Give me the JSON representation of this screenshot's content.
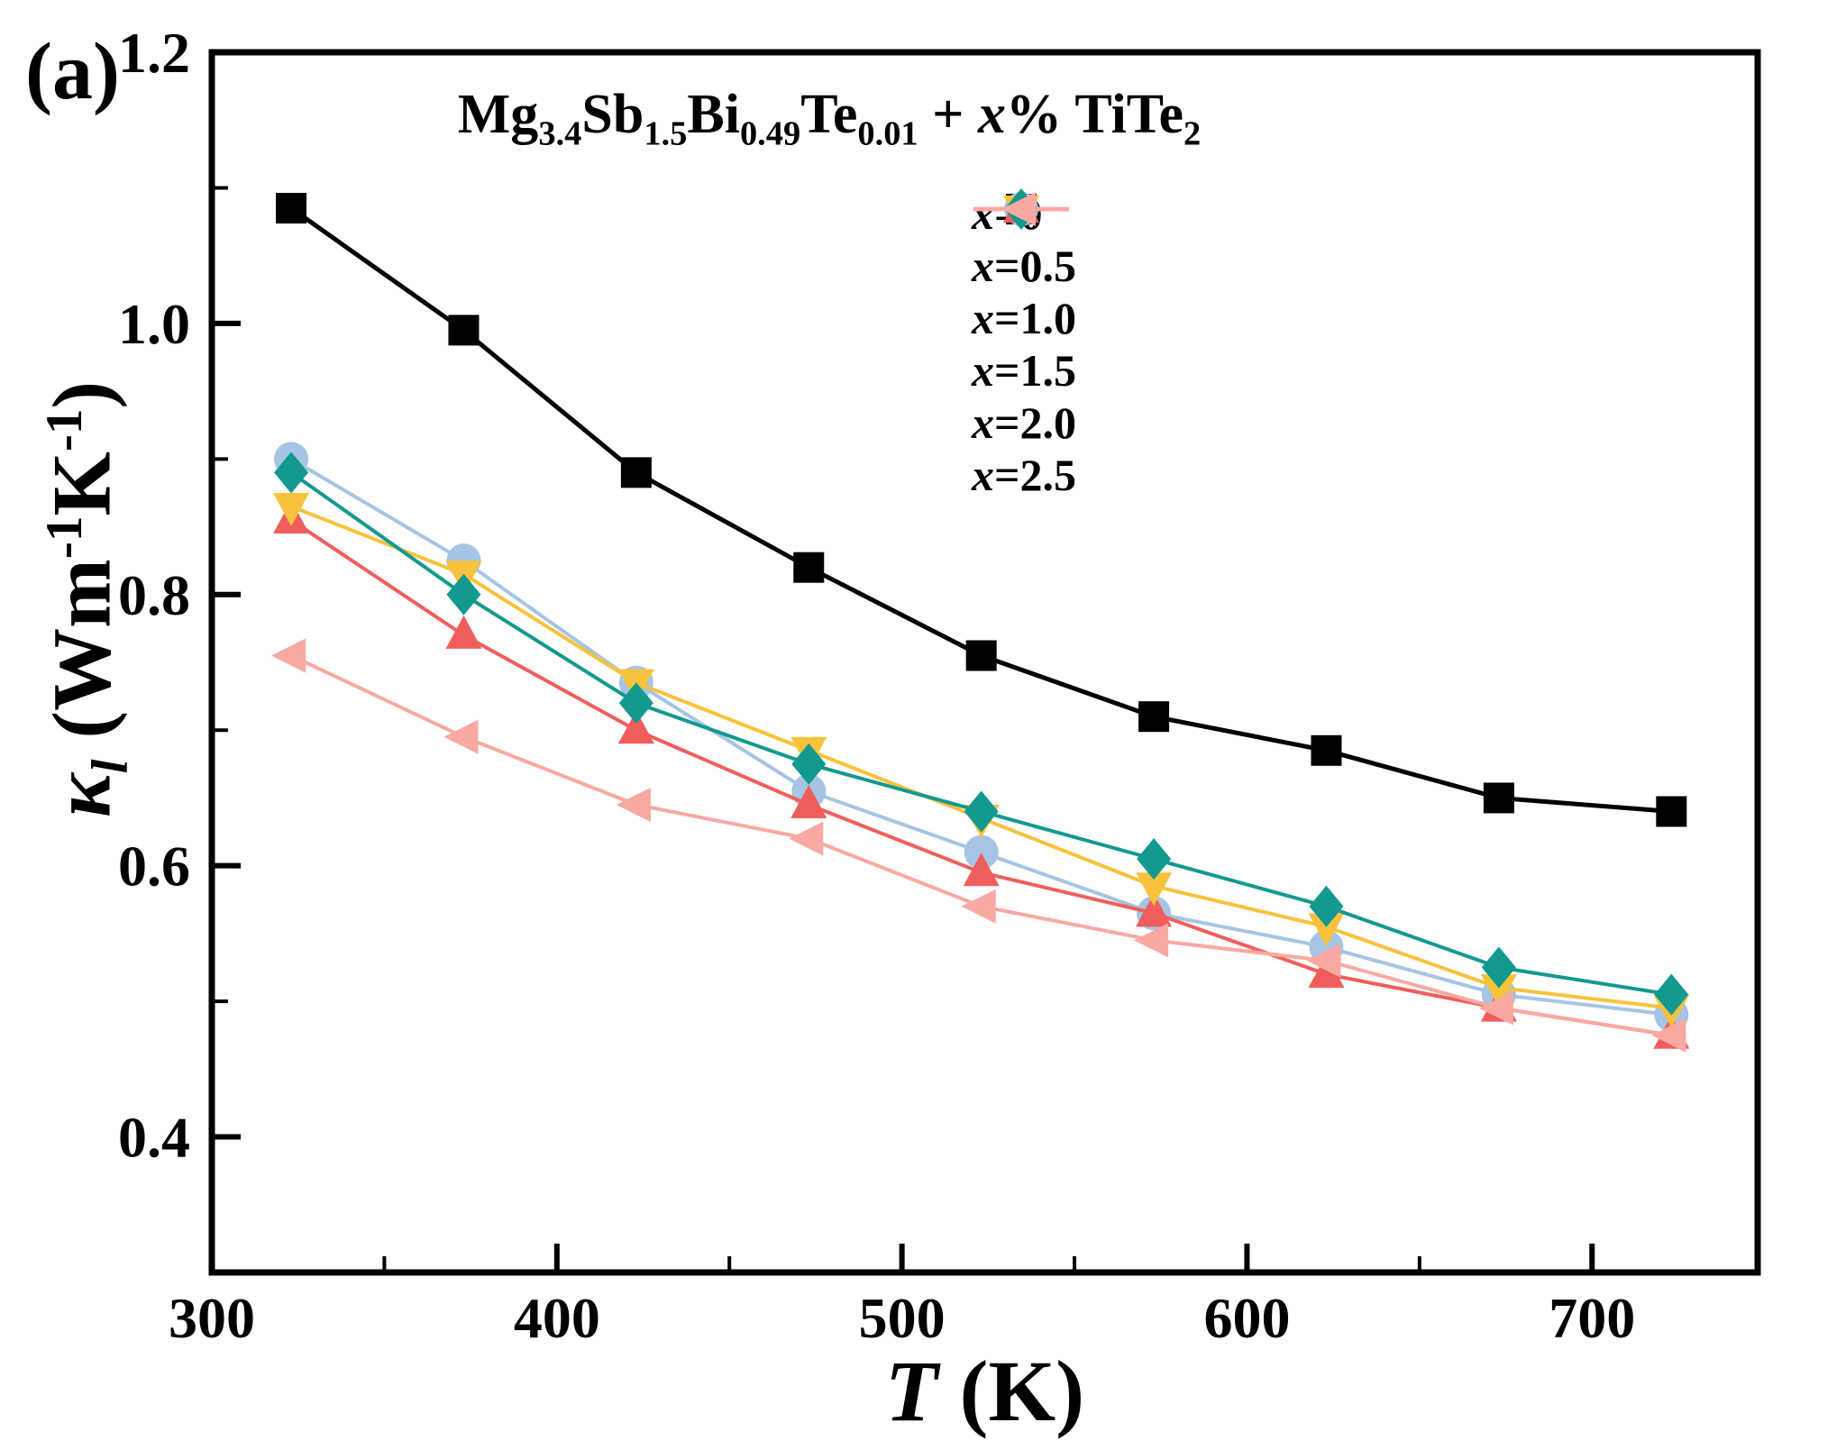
{
  "panel_label": "(a)",
  "title_segments": [
    {
      "t": "Mg"
    },
    {
      "t": "3.4",
      "sub": true
    },
    {
      "t": "Sb"
    },
    {
      "t": "1.5",
      "sub": true
    },
    {
      "t": "Bi"
    },
    {
      "t": "0.49",
      "sub": true
    },
    {
      "t": "Te"
    },
    {
      "t": "0.01",
      "sub": true
    },
    {
      "t": " + "
    },
    {
      "t": "x",
      "i": true
    },
    {
      "t": "% TiTe"
    },
    {
      "t": "2",
      "sub": true
    }
  ],
  "xlabel_segments": [
    {
      "t": "T",
      "i": true
    },
    {
      "t": " (K)"
    }
  ],
  "ylabel_segments": [
    {
      "t": "κ",
      "i": true
    },
    {
      "t": "l",
      "sub": true,
      "i": true
    },
    {
      "t": " (Wm"
    },
    {
      "t": "-1",
      "sup": true
    },
    {
      "t": "K"
    },
    {
      "t": "-1",
      "sup": true
    },
    {
      "t": ")"
    }
  ],
  "chart_data": {
    "type": "line",
    "title": "Mg3.4Sb1.5Bi0.49Te0.01 + x% TiTe2",
    "xlabel": "T (K)",
    "ylabel": "kappa_l (W m-1 K-1)",
    "x": [
      323,
      373,
      423,
      473,
      523,
      573,
      623,
      673,
      723
    ],
    "xlim": [
      300,
      748
    ],
    "ylim": [
      0.3,
      1.2
    ],
    "xticks": [
      300,
      400,
      500,
      600,
      700
    ],
    "yticks": [
      0.4,
      0.6,
      0.8,
      1.0,
      1.2
    ],
    "x_minor_step": 50,
    "y_minor_step": 0.1,
    "grid": false,
    "legend_position": "upper right",
    "series": [
      {
        "name": "x=0",
        "marker": "square",
        "color": "#000000",
        "values": [
          1.085,
          0.995,
          0.89,
          0.82,
          0.755,
          0.71,
          0.685,
          0.65,
          0.64
        ]
      },
      {
        "name": "x=0.5",
        "marker": "circle",
        "color": "#a6c4e4",
        "values": [
          0.9,
          0.825,
          0.735,
          0.655,
          0.61,
          0.565,
          0.54,
          0.505,
          0.49
        ]
      },
      {
        "name": "x=1.0",
        "marker": "triangle-up",
        "color": "#f05e5b",
        "values": [
          0.855,
          0.77,
          0.7,
          0.645,
          0.595,
          0.565,
          0.52,
          0.495,
          0.475
        ]
      },
      {
        "name": "x=1.5",
        "marker": "triangle-down",
        "color": "#f8c23c",
        "values": [
          0.865,
          0.815,
          0.735,
          0.685,
          0.635,
          0.585,
          0.555,
          0.51,
          0.495
        ]
      },
      {
        "name": "x=2.0",
        "marker": "diamond",
        "color": "#13998f",
        "values": [
          0.89,
          0.8,
          0.72,
          0.675,
          0.64,
          0.605,
          0.57,
          0.525,
          0.505
        ]
      },
      {
        "name": "x=2.5",
        "marker": "triangle-left",
        "color": "#f9a8a3",
        "values": [
          0.755,
          0.695,
          0.645,
          0.62,
          0.57,
          0.545,
          0.53,
          0.495,
          0.475
        ]
      }
    ]
  }
}
